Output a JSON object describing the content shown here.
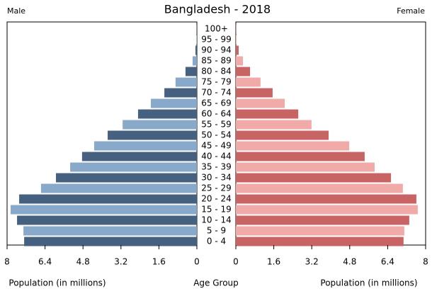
{
  "chart_data": {
    "type": "pyramid",
    "title": "Bangladesh - 2018",
    "categories": [
      "0 - 4",
      "5 - 9",
      "10 - 14",
      "15 - 19",
      "20 - 24",
      "25 - 29",
      "30 - 34",
      "35 - 39",
      "40 - 44",
      "45 - 49",
      "50 - 54",
      "55 - 59",
      "60 - 64",
      "65 - 69",
      "70 - 74",
      "75 - 79",
      "80 - 84",
      "85 - 89",
      "90 - 94",
      "95 - 99",
      "100+"
    ],
    "category_label": "Age Group",
    "series": [
      {
        "name": "Male",
        "side": "left",
        "xlabel": "Population (in millions)",
        "colors": [
          "#45617f",
          "#88a9c9"
        ],
        "values": [
          7.28,
          7.31,
          7.58,
          7.85,
          7.49,
          6.57,
          5.94,
          5.34,
          4.84,
          4.33,
          3.76,
          3.13,
          2.48,
          1.94,
          1.37,
          0.9,
          0.48,
          0.18,
          0.06,
          0.02,
          0.01
        ]
      },
      {
        "name": "Female",
        "side": "right",
        "xlabel": "Population (in millions)",
        "colors": [
          "#c96464",
          "#f0aaa8"
        ],
        "values": [
          7.07,
          7.1,
          7.31,
          7.67,
          7.61,
          7.04,
          6.54,
          5.85,
          5.43,
          4.78,
          3.91,
          3.19,
          2.63,
          2.06,
          1.55,
          1.04,
          0.6,
          0.3,
          0.12,
          0.03,
          0.01
        ]
      }
    ],
    "xlim": [
      0,
      8
    ],
    "xticks": [
      0,
      1.6,
      3.2,
      4.8,
      6.4,
      8
    ]
  }
}
